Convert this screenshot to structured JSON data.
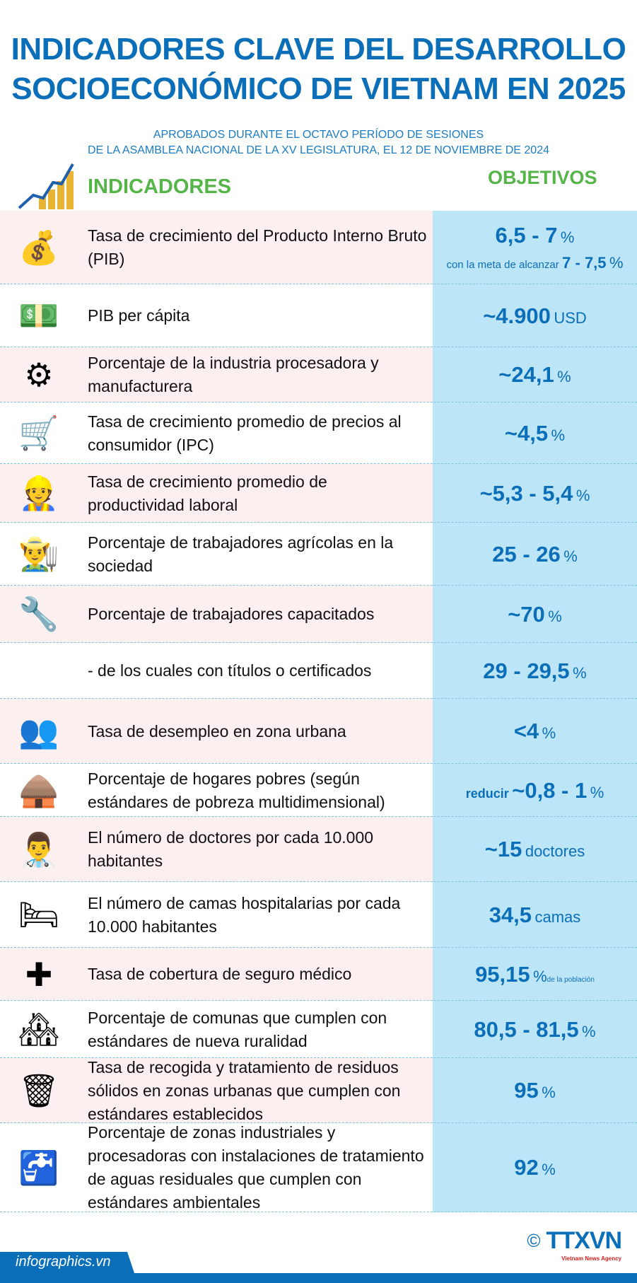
{
  "title": [
    "INDICADORES CLAVE DEL DESARROLLO",
    "SOCIOECONÓMICO DE VIETNAM EN 2025"
  ],
  "subtitle": [
    "APROBADOS DURANTE EL OCTAVO PERÍODO DE SESIONES",
    "DE LA ASAMBLEA NACIONAL DE LA XV LEGISLATURA, EL 12 DE NOVIEMBRE DE 2024"
  ],
  "headers": {
    "indicators": "INDICADORES",
    "objectives": "OBJETIVOS"
  },
  "colors": {
    "title": "#0a6fb8",
    "header": "#55b548",
    "objective_column": "#bde5f8",
    "row_alt": "#fcefef"
  },
  "rows": [
    {
      "icon": "money-bag-icon",
      "label": "Tasa de crecimiento del Producto Interno Bruto (PIB)",
      "value": "6,5 - 7",
      "unit": "%",
      "note_prefix": "con la meta de alcanzar",
      "note_value": "7 - 7,5",
      "note_unit": "%"
    },
    {
      "icon": "cash-stack-icon",
      "label": "PIB per cápita",
      "value": "~4.900",
      "unit": "USD"
    },
    {
      "icon": "factory-gear-icon",
      "label": "Porcentaje de la industria procesadora y manufacturera",
      "value": "~24,1",
      "unit": "%"
    },
    {
      "icon": "shopping-cart-cpi-icon",
      "label": "Tasa de crecimiento promedio de precios al consumidor (IPC)",
      "value": "~4,5",
      "unit": "%"
    },
    {
      "icon": "worker-chart-icon",
      "label": "Tasa de crecimiento promedio de productividad laboral",
      "value": "~5,3 - 5,4",
      "unit": "%"
    },
    {
      "icon": "farmer-icon",
      "label": "Porcentaje de trabajadores agrícolas en la sociedad",
      "value": "25 - 26",
      "unit": "%"
    },
    {
      "icon": "trained-worker-icon",
      "label": "Porcentaje de trabajadores capacitados",
      "value": "~70",
      "unit": "%"
    },
    {
      "icon": "",
      "label": "- de los cuales con títulos o certificados",
      "value": "29 - 29,5",
      "unit": "%"
    },
    {
      "icon": "unemployed-people-icon",
      "label": "Tasa de desempleo en zona urbana",
      "value": "<4",
      "unit": "%"
    },
    {
      "icon": "straw-hut-icon",
      "label": "Porcentaje de hogares pobres (según estándares de pobreza multidimensional)",
      "prefix": "reducir",
      "value": "~0,8 - 1",
      "unit": "%"
    },
    {
      "icon": "doctor-icon",
      "label": "El número de doctores por cada 10.000 habitantes",
      "value": "~15",
      "unit": "doctores"
    },
    {
      "icon": "hospital-bed-icon",
      "label": "El número de camas hospitalarias por cada 10.000 habitantes",
      "value": "34,5",
      "unit": "camas"
    },
    {
      "icon": "health-insurance-icon",
      "label": "Tasa de cobertura de seguro médico",
      "value": "95,15",
      "unit": "%",
      "suffix": "de la población"
    },
    {
      "icon": "rural-village-icon",
      "label": "Porcentaje de comunas que cumplen con estándares de nueva ruralidad",
      "value": "80,5 - 81,5",
      "unit": "%"
    },
    {
      "icon": "trash-bin-icon",
      "label": "Tasa de recogida y tratamiento de residuos sólidos en zonas urbanas que cumplen con estándares establecidos",
      "value": "95",
      "unit": "%"
    },
    {
      "icon": "wastewater-pipe-icon",
      "label": "Porcentaje de zonas industriales y procesadoras con instalaciones de tratamiento de aguas residuales que cumplen con estándares ambientales",
      "value": "92",
      "unit": "%"
    }
  ],
  "footer": {
    "site": "infographics.vn",
    "copyright": "©",
    "logo": "TTXVN",
    "agency": "Vietnam News Agency"
  }
}
